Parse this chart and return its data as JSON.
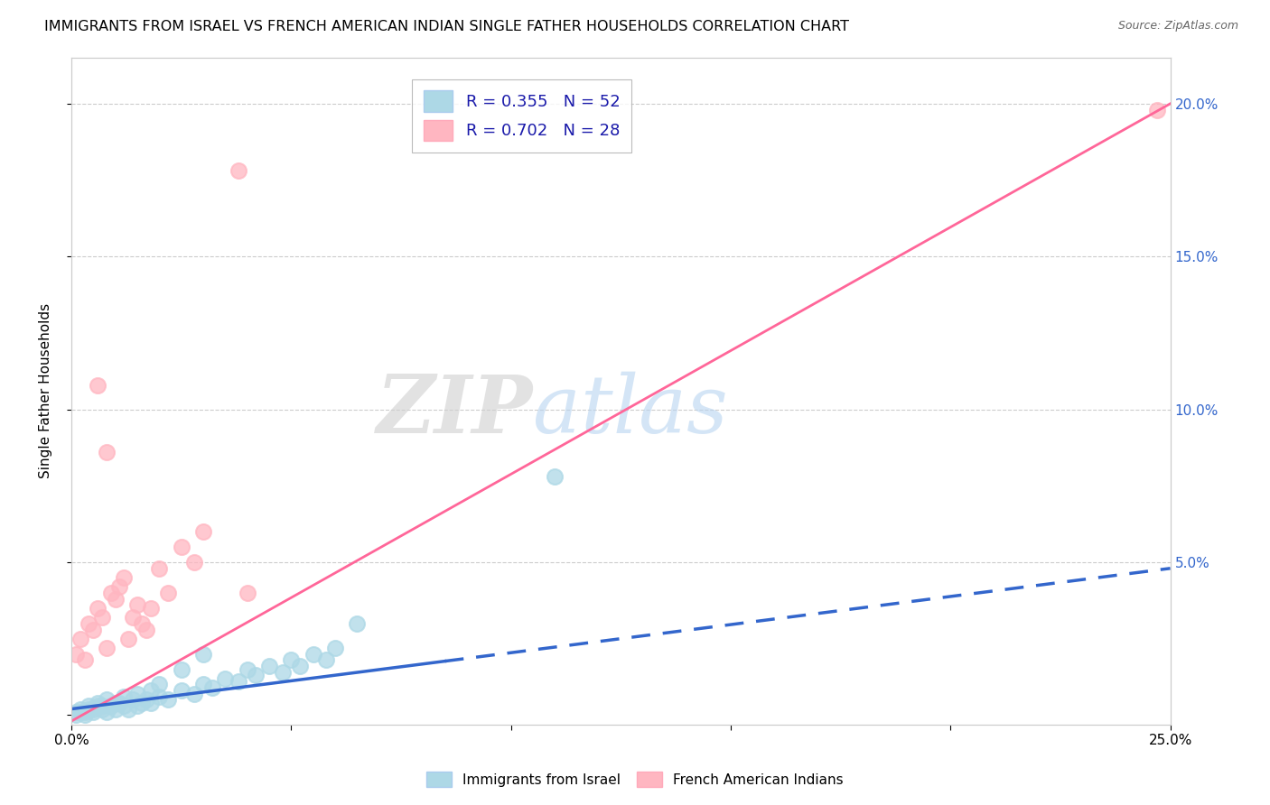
{
  "title": "IMMIGRANTS FROM ISRAEL VS FRENCH AMERICAN INDIAN SINGLE FATHER HOUSEHOLDS CORRELATION CHART",
  "source": "Source: ZipAtlas.com",
  "ylabel": "Single Father Households",
  "xlim": [
    0,
    0.25
  ],
  "ylim": [
    -0.003,
    0.215
  ],
  "ytick_vals": [
    0.0,
    0.05,
    0.1,
    0.15,
    0.2
  ],
  "legend_blue_r": "R = 0.355",
  "legend_blue_n": "N = 52",
  "legend_pink_r": "R = 0.702",
  "legend_pink_n": "N = 28",
  "blue_color": "#ADD8E6",
  "pink_color": "#FFB6C1",
  "blue_line_color": "#3366CC",
  "pink_line_color": "#FF6699",
  "watermark_zip": "ZIP",
  "watermark_atlas": "atlas",
  "blue_line_start_x": 0.0,
  "blue_line_end_solid_x": 0.085,
  "blue_line_end_x": 0.25,
  "blue_line_start_y": 0.002,
  "blue_line_end_y": 0.048,
  "pink_line_start_x": 0.0,
  "pink_line_end_x": 0.25,
  "pink_line_start_y": -0.002,
  "pink_line_end_y": 0.2,
  "blue_scatter_x": [
    0.001,
    0.002,
    0.003,
    0.004,
    0.005,
    0.006,
    0.007,
    0.008,
    0.009,
    0.01,
    0.011,
    0.012,
    0.013,
    0.014,
    0.015,
    0.016,
    0.017,
    0.018,
    0.02,
    0.022,
    0.025,
    0.028,
    0.03,
    0.032,
    0.035,
    0.038,
    0.04,
    0.042,
    0.045,
    0.048,
    0.05,
    0.052,
    0.055,
    0.058,
    0.06,
    0.001,
    0.002,
    0.003,
    0.004,
    0.005,
    0.006,
    0.007,
    0.008,
    0.01,
    0.012,
    0.015,
    0.018,
    0.02,
    0.025,
    0.03,
    0.065,
    0.11
  ],
  "blue_scatter_y": [
    0.0,
    0.001,
    0.0,
    0.002,
    0.001,
    0.003,
    0.002,
    0.001,
    0.003,
    0.002,
    0.004,
    0.003,
    0.002,
    0.005,
    0.003,
    0.004,
    0.005,
    0.004,
    0.006,
    0.005,
    0.008,
    0.007,
    0.01,
    0.009,
    0.012,
    0.011,
    0.015,
    0.013,
    0.016,
    0.014,
    0.018,
    0.016,
    0.02,
    0.018,
    0.022,
    0.001,
    0.002,
    0.001,
    0.003,
    0.002,
    0.004,
    0.003,
    0.005,
    0.004,
    0.006,
    0.007,
    0.008,
    0.01,
    0.015,
    0.02,
    0.03,
    0.078
  ],
  "pink_scatter_x": [
    0.001,
    0.002,
    0.003,
    0.004,
    0.005,
    0.006,
    0.007,
    0.008,
    0.009,
    0.01,
    0.011,
    0.012,
    0.013,
    0.014,
    0.015,
    0.016,
    0.017,
    0.018,
    0.02,
    0.022,
    0.025,
    0.028,
    0.03,
    0.04,
    0.038,
    0.006,
    0.008,
    0.247
  ],
  "pink_scatter_y": [
    0.02,
    0.025,
    0.018,
    0.03,
    0.028,
    0.035,
    0.032,
    0.022,
    0.04,
    0.038,
    0.042,
    0.045,
    0.025,
    0.032,
    0.036,
    0.03,
    0.028,
    0.035,
    0.048,
    0.04,
    0.055,
    0.05,
    0.06,
    0.04,
    0.178,
    0.108,
    0.086,
    0.198
  ]
}
